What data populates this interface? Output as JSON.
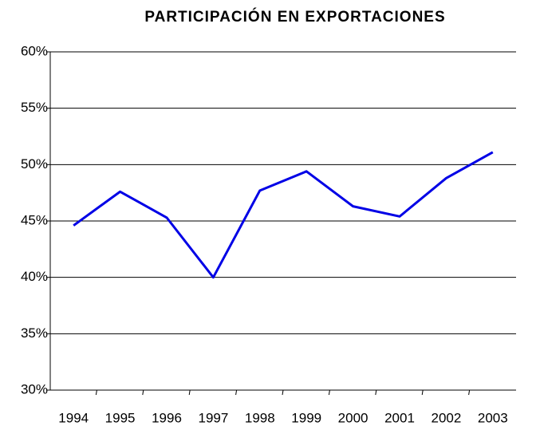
{
  "chart_data": {
    "type": "line",
    "title": "PARTICIPACIÓN EN EXPORTACIONES",
    "categories": [
      "1994",
      "1995",
      "1996",
      "1997",
      "1998",
      "1999",
      "2000",
      "2001",
      "2002",
      "2003"
    ],
    "series": [
      {
        "name": "Participación",
        "color": "#0000e6",
        "values": [
          44.6,
          47.6,
          45.3,
          40.0,
          47.7,
          49.4,
          46.3,
          45.4,
          48.8,
          51.1
        ]
      }
    ],
    "ylim": [
      30,
      60
    ],
    "yticks": [
      {
        "value": 30,
        "label": "30%"
      },
      {
        "value": 35,
        "label": "35%"
      },
      {
        "value": 40,
        "label": "40%"
      },
      {
        "value": 45,
        "label": "45%"
      },
      {
        "value": 50,
        "label": "50%"
      },
      {
        "value": 55,
        "label": "55%"
      },
      {
        "value": 60,
        "label": "60%"
      }
    ],
    "grid": true
  }
}
